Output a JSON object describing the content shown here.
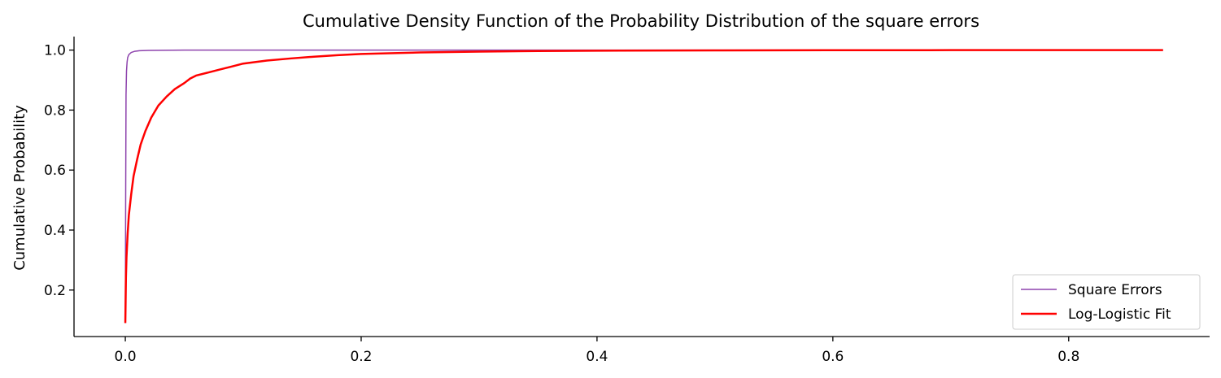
{
  "chart_data": {
    "type": "line",
    "title": "Cumulative Density Function of the Probability Distribution of the square errors",
    "xlabel": "",
    "ylabel": "Cumulative Probability",
    "xlim": [
      -0.0435,
      0.9195
    ],
    "ylim": [
      0.045,
      1.045
    ],
    "xticks": [
      0.0,
      0.2,
      0.4,
      0.6,
      0.8
    ],
    "xtick_labels": [
      "0.0",
      "0.2",
      "0.4",
      "0.6",
      "0.8"
    ],
    "yticks": [
      0.2,
      0.4,
      0.6,
      0.8,
      1.0
    ],
    "ytick_labels": [
      "0.2",
      "0.4",
      "0.6",
      "0.8",
      "1.0"
    ],
    "grid": false,
    "legend_position": "lower-right",
    "series": [
      {
        "name": "Square Errors",
        "color": "#8e44ad",
        "x": [
          0.0,
          0.0003,
          0.0006,
          0.001,
          0.0015,
          0.002,
          0.003,
          0.005,
          0.008,
          0.012,
          0.02,
          0.05,
          0.1,
          0.3,
          0.6,
          0.88
        ],
        "y": [
          0.09,
          0.5,
          0.85,
          0.93,
          0.96,
          0.975,
          0.985,
          0.992,
          0.996,
          0.998,
          0.999,
          1.0,
          1.0,
          1.0,
          1.0,
          1.0
        ]
      },
      {
        "name": "Log-Logistic Fit",
        "color": "#ff0000",
        "x": [
          0.0,
          0.0005,
          0.001,
          0.002,
          0.003,
          0.005,
          0.007,
          0.01,
          0.013,
          0.017,
          0.022,
          0.028,
          0.035,
          0.042,
          0.05,
          0.055,
          0.06,
          0.07,
          0.08,
          0.09,
          0.1,
          0.12,
          0.14,
          0.16,
          0.18,
          0.2,
          0.25,
          0.3,
          0.35,
          0.4,
          0.5,
          0.6,
          0.7,
          0.8,
          0.88
        ],
        "y": [
          0.09,
          0.24,
          0.31,
          0.39,
          0.45,
          0.52,
          0.58,
          0.635,
          0.685,
          0.73,
          0.775,
          0.815,
          0.845,
          0.87,
          0.89,
          0.905,
          0.915,
          0.925,
          0.935,
          0.945,
          0.955,
          0.965,
          0.972,
          0.978,
          0.983,
          0.987,
          0.992,
          0.995,
          0.997,
          0.998,
          0.999,
          0.9995,
          0.9998,
          1.0,
          1.0
        ]
      }
    ]
  }
}
